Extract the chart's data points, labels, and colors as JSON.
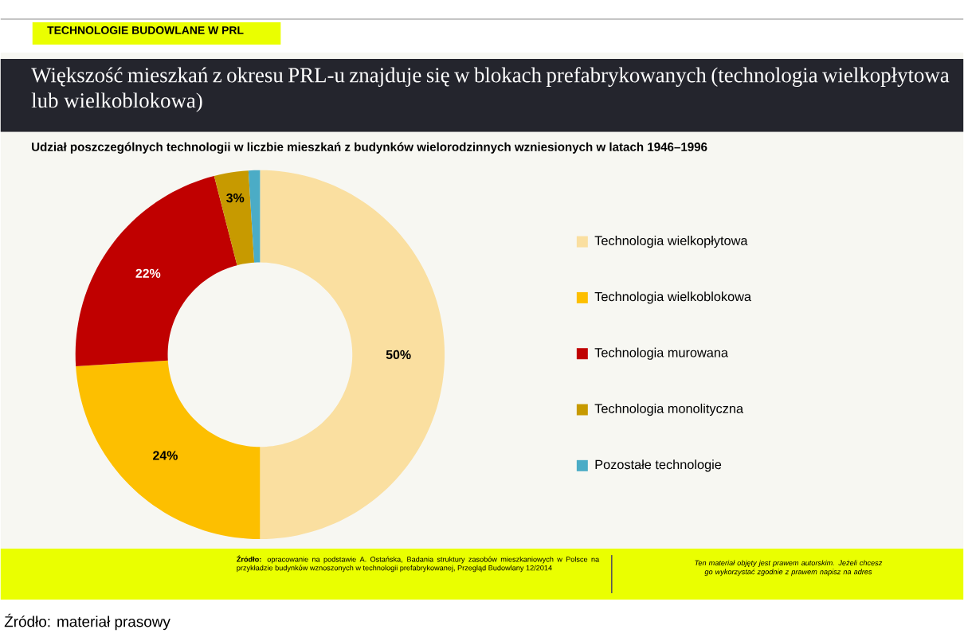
{
  "chart_data": {
    "type": "donut",
    "title": "Większość mieszkań z okresu PRL-u znajduje się w blokach prefabrykowanych (technologia wielkopłytowa lub wielkoblokowa)",
    "subtitle": "Udział poszczególnych technologii w liczbie mieszkań z budynków wielorodzinnych wzniesionych w latach 1946–1996",
    "categories": [
      "Technologia wielkopłytowa",
      "Technologia wielkoblokowa",
      "Technologia murowana",
      "Technologia monolityczna",
      "Pozostałe technologie"
    ],
    "values": [
      50,
      24,
      22,
      3,
      1
    ],
    "colors": [
      "#fadfa0",
      "#fdbf00",
      "#c00000",
      "#c79a00",
      "#4bacc6"
    ],
    "value_labels": [
      "50%",
      "24%",
      "22%",
      "3%",
      null
    ],
    "legend": "right",
    "annotations": [
      "TECHNOLOGIE BUDOWLANE W PRL",
      "**Źródło:** opracowanie na podstawie A. Ostańska, Badania struktury zasobów mieszkaniowych w Polsce na przykładzie budynków wznoszonych w technologii prefabrykowanej, Przegląd Budowlany 12/2014",
      "Ten materiał objęty jest prawem autorskim. Jeżeli chcesz go wykorzystać zgodnie z prawem napisz na adres",
      "Źródło: materiał prasowy"
    ]
  }
}
